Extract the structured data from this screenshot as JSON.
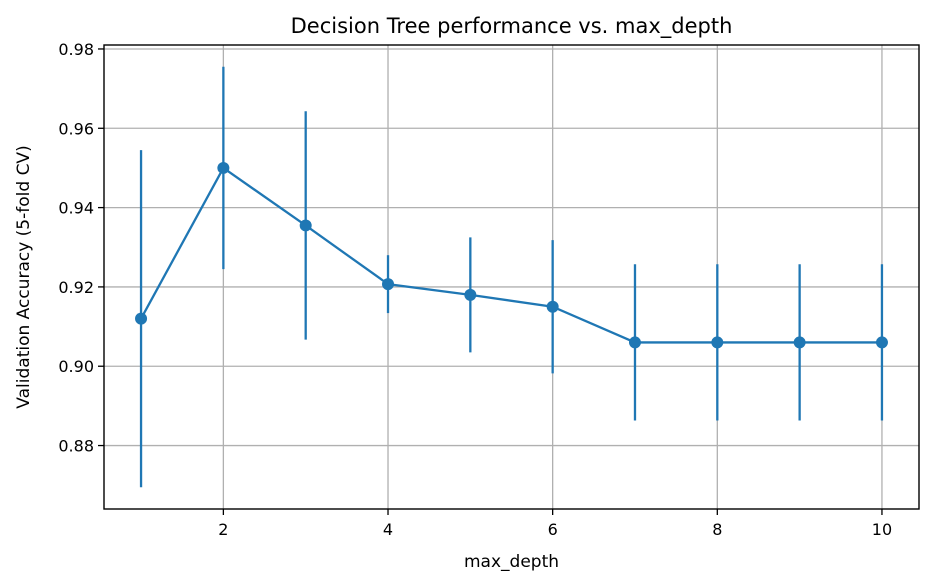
{
  "chart_data": {
    "type": "line",
    "title": "Decision Tree performance vs. max_depth",
    "xlabel": "max_depth",
    "ylabel": "Validation Accuracy (5-fold CV)",
    "xlim": [
      0.55,
      10.45
    ],
    "ylim": [
      0.864,
      0.981
    ],
    "xticks": [
      2,
      4,
      6,
      8,
      10
    ],
    "xtick_labels": [
      "2",
      "4",
      "6",
      "8",
      "10"
    ],
    "yticks": [
      0.88,
      0.9,
      0.92,
      0.94,
      0.96,
      0.98
    ],
    "ytick_labels": [
      "0.88",
      "0.90",
      "0.92",
      "0.94",
      "0.96",
      "0.98"
    ],
    "grid": true,
    "color": "#1f77b4",
    "series": [
      {
        "x": [
          1,
          2,
          3,
          4,
          5,
          6,
          7,
          8,
          9,
          10
        ],
        "y": [
          0.912,
          0.95,
          0.9355,
          0.9207,
          0.918,
          0.915,
          0.906,
          0.906,
          0.906,
          0.906
        ],
        "yerr": [
          0.0425,
          0.0255,
          0.0288,
          0.0073,
          0.0145,
          0.0168,
          0.0197,
          0.0197,
          0.0197,
          0.0197
        ]
      }
    ]
  }
}
